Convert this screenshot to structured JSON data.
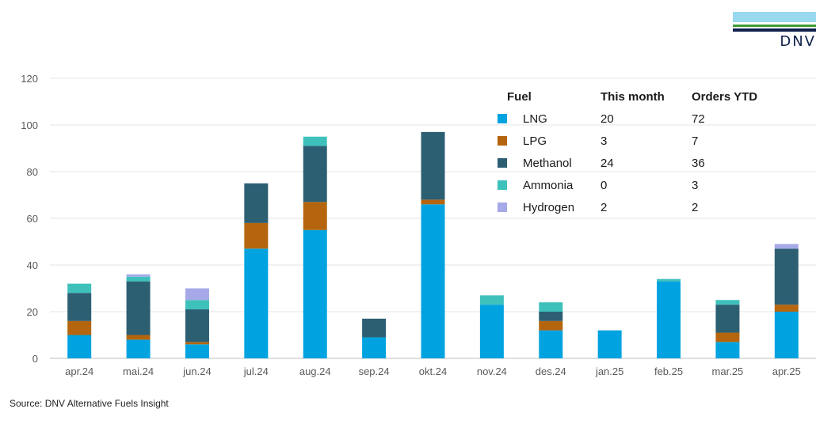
{
  "logo": {
    "text": "DNV",
    "colors": [
      "#99d9f0",
      "#3f9c35",
      "#0f204b"
    ]
  },
  "source": "Source: DNV Alternative Fuels Insight",
  "chart_data": {
    "type": "bar",
    "stacked": true,
    "categories": [
      "apr.24",
      "mai.24",
      "jun.24",
      "jul.24",
      "aug.24",
      "sep.24",
      "okt.24",
      "nov.24",
      "des.24",
      "jan.25",
      "feb.25",
      "mar.25",
      "apr.25"
    ],
    "ylim": [
      0,
      120
    ],
    "yticks": [
      0,
      20,
      40,
      60,
      80,
      100,
      120
    ],
    "grid": true,
    "legend_position": "top-right",
    "series": [
      {
        "name": "LNG",
        "color": "#00a3e0",
        "values": [
          10,
          8,
          6,
          47,
          55,
          9,
          66,
          23,
          12,
          12,
          33,
          7,
          20
        ]
      },
      {
        "name": "LPG",
        "color": "#b5650d",
        "values": [
          6,
          2,
          1,
          11,
          12,
          0,
          2,
          0,
          4,
          0,
          0,
          4,
          3
        ]
      },
      {
        "name": "Methanol",
        "color": "#2d5f73",
        "values": [
          12,
          23,
          14,
          17,
          24,
          8,
          29,
          0,
          4,
          0,
          0,
          12,
          24
        ]
      },
      {
        "name": "Ammonia",
        "color": "#3ec1bb",
        "values": [
          4,
          2,
          4,
          0,
          4,
          0,
          0,
          4,
          4,
          0,
          1,
          2,
          0
        ]
      },
      {
        "name": "Hydrogen",
        "color": "#a5a9e8",
        "values": [
          0,
          1,
          5,
          0,
          0,
          0,
          0,
          0,
          0,
          0,
          0,
          0,
          2
        ]
      }
    ],
    "legend_table": {
      "headers": [
        "Fuel",
        "This month",
        "Orders YTD"
      ],
      "rows": [
        [
          "LNG",
          "20",
          "72"
        ],
        [
          "LPG",
          "3",
          "7"
        ],
        [
          "Methanol",
          "24",
          "36"
        ],
        [
          "Ammonia",
          "0",
          "3"
        ],
        [
          "Hydrogen",
          "2",
          "2"
        ]
      ]
    }
  }
}
